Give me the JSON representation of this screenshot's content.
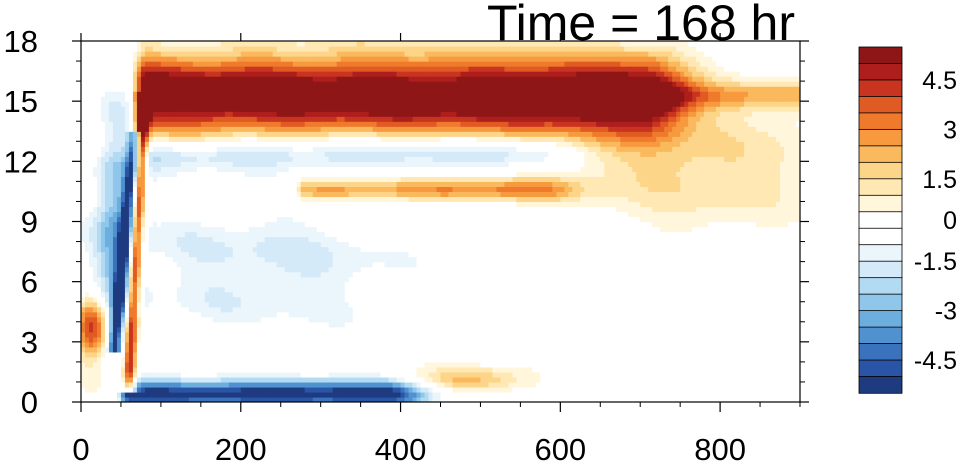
{
  "chart_data": {
    "type": "heatmap",
    "title": "Time = 168 hr",
    "xlabel": "",
    "ylabel": "",
    "xlim": [
      0,
      900
    ],
    "ylim": [
      0,
      18
    ],
    "x_ticks": [
      0,
      200,
      400,
      600,
      800
    ],
    "y_ticks": [
      0,
      3,
      6,
      9,
      12,
      15,
      18
    ],
    "grid": false,
    "colorbar": {
      "placement": "right",
      "levels": [
        -5.5,
        -5,
        -4.5,
        -4,
        -3.5,
        -3,
        -2.5,
        -2,
        -1.5,
        -1,
        -0.5,
        0.5,
        1,
        1.5,
        2,
        2.5,
        3,
        3.5,
        4,
        4.5,
        5,
        5.5
      ],
      "colors": [
        "#1f3b80",
        "#2a55a6",
        "#3a72bd",
        "#4f92cf",
        "#6cafdf",
        "#8fc6eb",
        "#b3daf3",
        "#d4eaf8",
        "#eaf5fc",
        "#ffffff",
        "#ffffff",
        "#fff6dc",
        "#ffe8b3",
        "#fdd589",
        "#fbb95e",
        "#f79a3f",
        "#ef7a2c",
        "#e05a23",
        "#c93420",
        "#ad1e1c",
        "#8e1616"
      ],
      "tick_labels": [
        "4.5",
        "3",
        "1.5",
        "0",
        "-1.5",
        "-3",
        "-4.5"
      ],
      "tick_values": [
        4.5,
        3,
        1.5,
        0,
        -1.5,
        -3,
        -4.5
      ]
    },
    "features": [
      {
        "kind": "upper_jet",
        "x_start": 80,
        "x_end": 700,
        "y_center": 15.3,
        "half_width": 1.4,
        "peak": 6.2
      },
      {
        "kind": "upper_band_tail",
        "x_start": 560,
        "x_end": 900,
        "y_center": 15.3,
        "half_width": 0.5,
        "peak": 2.2
      },
      {
        "kind": "mid_band_positive",
        "x_start": 280,
        "x_end": 560,
        "y_center": 10.6,
        "half_width": 0.4,
        "peak": 3.0
      },
      {
        "kind": "positive_patch_right",
        "x_center": 770,
        "y_center": 11.8,
        "rx": 120,
        "ry": 2.2,
        "peak": 1.6
      },
      {
        "kind": "negative_band",
        "x_start": 90,
        "x_end": 560,
        "y_center": 12.4,
        "half_width": 0.6,
        "peak": -2.4
      },
      {
        "kind": "bottom_negative",
        "x_start": 60,
        "x_end": 380,
        "y_center": 0.4,
        "half_width": 0.5,
        "peak": -5.5
      },
      {
        "kind": "near_surface_positive",
        "x_center": 480,
        "y_center": 1.1,
        "rx": 45,
        "ry": 0.45,
        "peak": 2.5
      },
      {
        "kind": "left_positive",
        "x_center": 15,
        "y_center": 3.8,
        "rx": 14,
        "ry": 1.2,
        "peak": 4.5
      },
      {
        "kind": "left_negative",
        "x_center": 45,
        "y_center": 9.0,
        "rx": 20,
        "ry": 4.0,
        "peak": -3.0
      },
      {
        "kind": "slanted_front_positive",
        "from": [
          60,
          1.0
        ],
        "to": [
          78,
          15.0
        ],
        "width": 6,
        "peak": 5.5
      },
      {
        "kind": "slanted_front_negative",
        "from": [
          42,
          3.0
        ],
        "to": [
          68,
          13.0
        ],
        "width": 6,
        "peak": -4.5
      },
      {
        "kind": "scattered_negative",
        "x_center": 230,
        "y_center": 6.8,
        "rx": 140,
        "ry": 2.5,
        "peak": -1.6
      }
    ]
  }
}
